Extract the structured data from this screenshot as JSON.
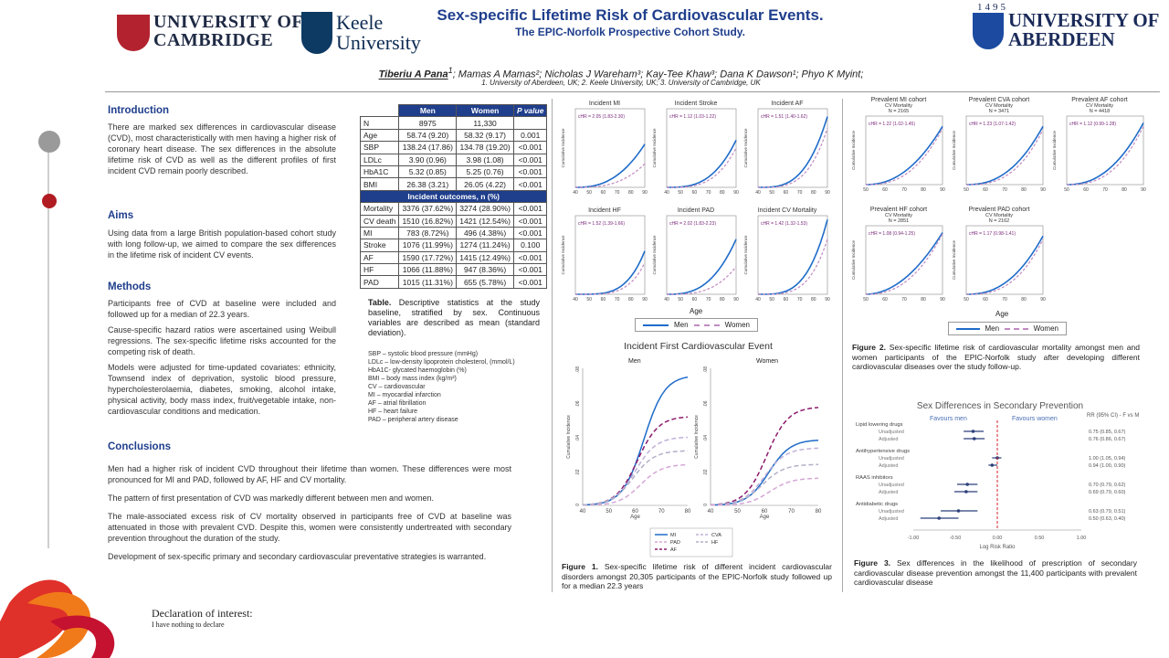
{
  "header": {
    "title": "Sex-specific Lifetime Risk of Cardiovascular Events.",
    "subtitle": "The EPIC-Norfolk Prospective Cohort Study.",
    "cambridge_line1": "UNIVERSITY OF",
    "cambridge_line2": "CAMBRIDGE",
    "keele_line1": "Keele",
    "keele_line2": "University",
    "aberdeen_year": "1495",
    "aberdeen_line1": "UNIVERSITY OF",
    "aberdeen_line2": "ABERDEEN",
    "presenting_author": "Tiberiu A Pana",
    "presenting_author_sup": "1",
    "authors_rest": "; Mamas A Mamas²; Nicholas J Wareham³; Kay-Tee Khaw³; Dana K Dawson¹; Phyo K Myint;",
    "affiliations": "1. University of Aberdeen, UK; 2. Keele University, UK; 3. University of Cambridge, UK"
  },
  "introduction": {
    "heading": "Introduction",
    "text": "There are marked sex differences in cardiovascular disease (CVD), most characteristically with men having a higher risk of coronary heart disease. The sex differences in the absolute lifetime risk of CVD as well as the different profiles of first incident CVD  remain poorly described."
  },
  "aims": {
    "heading": "Aims",
    "text": "Using data from a large British population-based cohort study with long follow-up, we aimed to compare the sex differences in the lifetime risk of incident CV events."
  },
  "methods": {
    "heading": "Methods",
    "p1": "Participants free of CVD at baseline were included and followed up for a median of 22.3 years.",
    "p2": "Cause-specific hazard ratios were ascertained using Weibull regressions. The sex-specific lifetime risks accounted for the competing risk of death.",
    "p3": "Models were adjusted for time-updated covariates: ethnicity, Townsend index of deprivation, systolic blood pressure, hypercholesterolaemia, diabetes, smoking, alcohol intake, physical activity, body mass index, fruit/vegetable intake, non-cardiovascular conditions and medication."
  },
  "conclusions": {
    "heading": "Conclusions",
    "p1": "Men had a higher risk of incident CVD throughout their lifetime than women. These differences were most pronounced for MI and PAD, followed by AF, HF and CV mortality.",
    "p2": "The pattern of first presentation of CVD was markedly different between men and women.",
    "p3": "The male-associated excess risk of CV mortality observed in participants free of CVD at baseline was attenuated in those with prevalent CVD. Despite this, women were consistently undertreated with secondary prevention throughout the duration of the study.",
    "p4": "Development of sex-specific primary and secondary cardiovascular preventative strategies is warranted."
  },
  "declaration": {
    "heading": "Declaration of interest:",
    "text": "I have nothing to declare"
  },
  "table": {
    "headers": [
      "",
      "Men",
      "Women",
      "P value"
    ],
    "baseline_rows": [
      [
        "N",
        "8975",
        "11,330",
        ""
      ],
      [
        "Age",
        "58.74 (9.20)",
        "58.32 (9.17)",
        "0.001"
      ],
      [
        "SBP",
        "138.24 (17.86)",
        "134.78 (19.20)",
        "<0.001"
      ],
      [
        "LDLc",
        "3.90 (0.96)",
        "3.98 (1.08)",
        "<0.001"
      ],
      [
        "HbA1C",
        "5.32 (0.85)",
        "5.25 (0.76)",
        "<0.001"
      ],
      [
        "BMI",
        "26.38 (3.21)",
        "26.05 (4.22)",
        "<0.001"
      ]
    ],
    "outcomes_header": "Incident outcomes, n (%)",
    "outcome_rows": [
      [
        "Mortality",
        "3376 (37.62%)",
        "3274 (28.90%)",
        "<0.001"
      ],
      [
        "CV death",
        "1510 (16.82%)",
        "1421 (12.54%)",
        "<0.001"
      ],
      [
        "MI",
        "783 (8.72%)",
        "496 (4.38%)",
        "<0.001"
      ],
      [
        "Stroke",
        "1076 (11.99%)",
        "1274 (11.24%)",
        "0.100"
      ],
      [
        "AF",
        "1590 (17.72%)",
        "1415 (12.49%)",
        "<0.001"
      ],
      [
        "HF",
        "1066 (11.88%)",
        "947 (8.36%)",
        "<0.001"
      ],
      [
        "PAD",
        "1015 (11.31%)",
        "655 (5.78%)",
        "<0.001"
      ]
    ],
    "caption_bold": "Table.",
    "caption": " Descriptive statistics at the study baseline, stratified by sex. Continuous variables are described as mean (standard deviation).",
    "abbreviations": [
      "SBP – systolic blood pressure (mmHg)",
      "LDLc – low-density lipoprotein cholesterol, (mmol/L)",
      "HbA1C- glycated haemoglobin (%)",
      "BMI – body mass index (kg/m²)",
      "CV – cardiovascular",
      "MI – myocardial infarction",
      "AF – atrial fibrillation",
      "HF – heart failure",
      "PAD – peripheral artery disease"
    ]
  },
  "figure1": {
    "panels": [
      {
        "title": "Incident MI",
        "chr": "cHR = 2.05 (1.83-2.30)"
      },
      {
        "title": "Incident Stroke",
        "chr": "cHR = 1.12 (1.03-1.22)"
      },
      {
        "title": "Incident AF",
        "chr": "cHR = 1.51 (1.40-1.62)"
      },
      {
        "title": "Incident HF",
        "chr": "cHR = 1.52 (1.39-1.66)"
      },
      {
        "title": "Incident PAD",
        "chr": "cHR = 2.02 (1.83-2.23)"
      },
      {
        "title": "Incident CV Mortality",
        "chr": "cHR = 1.42 (1.32-1.53)"
      }
    ],
    "ylabel": "Cumulative Incidence",
    "xticks": [
      "40",
      "50",
      "60",
      "70",
      "80",
      "90"
    ],
    "xlabel": "Age",
    "legend_men": "Men",
    "legend_women": "Women",
    "first_event_title": "Incident First Cardiovascular Event",
    "first_event_men": "Men",
    "first_event_women": "Women",
    "first_event_yticks": [
      ".08",
      ".06",
      ".04",
      ".02",
      "0"
    ],
    "first_event_xticks": [
      "40",
      "50",
      "60",
      "70",
      "80"
    ],
    "first_event_legend": [
      "MI",
      "CVA",
      "PAD",
      "HF",
      "AF"
    ],
    "caption_bold": "Figure 1.",
    "caption": " Sex-specific lifetime risk of different incident cardiovascular disorders amongst 20,305 participants of the EPIC-Norfolk study followed up for a median 22.3 years"
  },
  "figure2": {
    "panels": [
      {
        "title": "Prevalent MI cohort",
        "sub": "CV Mortality",
        "n": "N = 2165",
        "chr": "cHR = 1.22 (1.02-1.45)"
      },
      {
        "title": "Prevalent CVA cohort",
        "sub": "CV Mortality",
        "n": "N = 3471",
        "chr": "cHR = 1.23 (1.07-1.42)"
      },
      {
        "title": "Prevalent AF cohort",
        "sub": "CV Mortality",
        "n": "N = 4418",
        "chr": "cHR = 1.12 (0.99-1.28)"
      },
      {
        "title": "Prevalent HF cohort",
        "sub": "CV Mortality",
        "n": "N = 2851",
        "chr": "cHR = 1.08 (0.94-1.25)"
      },
      {
        "title": "Prevalent PAD cohort",
        "sub": "CV Mortality",
        "n": "N = 2162",
        "chr": "cHR = 1.17 (0.98-1.41)"
      }
    ],
    "ylabel": "Cumulative Incidence",
    "xticks": [
      "50",
      "60",
      "70",
      "80",
      "90"
    ],
    "xlabel": "Age",
    "legend_men": "Men",
    "legend_women": "Women",
    "caption_bold": "Figure 2.",
    "caption": " Sex-specific lifetime risk of cardiovascular mortality amongst men and women participants of the EPIC-Norfolk study after developing different cardiovascular diseases over the study follow-up."
  },
  "figure3": {
    "title": "Sex Differences in Secondary Prevention",
    "favours_men": "Favours men",
    "favours_women": "Favours women",
    "rr_header": "RR (95% CI) - F vs M",
    "x_label": "Log Risk Ratio",
    "x_ticks": [
      "-1.00",
      "-0.50",
      "0.00",
      "0.50",
      "1.00"
    ],
    "groups": [
      {
        "name": "Lipid lowering drugs",
        "rows": [
          {
            "label": "Unadjusted",
            "rr": "0.75 (0.85, 0.67)"
          },
          {
            "label": "Adjusted",
            "rr": "0.76 (0.86, 0.67)"
          }
        ]
      },
      {
        "name": "Antihypertensive drugs",
        "rows": [
          {
            "label": "Unadjusted",
            "rr": "1.00 (1.05, 0.94)"
          },
          {
            "label": "Adjusted",
            "rr": "0.94 (1.00, 0.90)"
          }
        ]
      },
      {
        "name": "RAAS inhibitors",
        "rows": [
          {
            "label": "Unadjusted",
            "rr": "0.70 (0.79, 0.62)"
          },
          {
            "label": "Adjusted",
            "rr": "0.69 (0.79, 0.60)"
          }
        ]
      },
      {
        "name": "Antidiabetic drugs",
        "rows": [
          {
            "label": "Unadjusted",
            "rr": "0.63 (0.79, 0.51)"
          },
          {
            "label": "Adjusted",
            "rr": "0.50 (0.63, 0.40)"
          }
        ]
      }
    ],
    "caption_bold": "Figure 3.",
    "caption": " Sex differences in the likelihood of prescription of secondary cardiovascular disease prevention amongst the 11,400 participants with prevalent cardiovascular disease"
  },
  "colors": {
    "men": "#1f6cc9",
    "women": "#c08ac0",
    "heading": "#1f3e8c",
    "accent_red": "#b01c22"
  }
}
